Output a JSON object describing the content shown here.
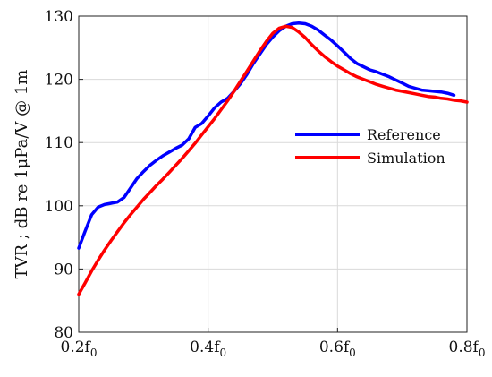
{
  "chart_data": {
    "type": "line",
    "title": "",
    "xlabel": "",
    "ylabel": "TVR ; dB re 1μPa/V @ 1m",
    "xlim": [
      0.2,
      0.8
    ],
    "ylim": [
      80,
      130
    ],
    "x_tick_labels": [
      {
        "base": "0.2f",
        "sub": "0"
      },
      {
        "base": "0.4f",
        "sub": "0"
      },
      {
        "base": "0.6f",
        "sub": "0"
      },
      {
        "base": "0.8f",
        "sub": "0"
      }
    ],
    "x_ticks": [
      0.2,
      0.4,
      0.6,
      0.8
    ],
    "y_ticks": [
      80,
      90,
      100,
      110,
      120,
      130
    ],
    "y_tick_labels": [
      "80",
      "90",
      "100",
      "110",
      "120",
      "130"
    ],
    "grid": true,
    "legend_position": "center-right",
    "series": [
      {
        "name": "Reference",
        "color": "#0000ff",
        "points": [
          [
            0.2,
            93.3
          ],
          [
            0.21,
            96.0
          ],
          [
            0.22,
            98.6
          ],
          [
            0.23,
            99.8
          ],
          [
            0.24,
            100.2
          ],
          [
            0.25,
            100.4
          ],
          [
            0.26,
            100.6
          ],
          [
            0.27,
            101.3
          ],
          [
            0.28,
            102.8
          ],
          [
            0.29,
            104.3
          ],
          [
            0.3,
            105.4
          ],
          [
            0.31,
            106.4
          ],
          [
            0.32,
            107.2
          ],
          [
            0.33,
            107.9
          ],
          [
            0.34,
            108.5
          ],
          [
            0.35,
            109.1
          ],
          [
            0.36,
            109.6
          ],
          [
            0.37,
            110.6
          ],
          [
            0.38,
            112.4
          ],
          [
            0.39,
            113.0
          ],
          [
            0.4,
            114.2
          ],
          [
            0.41,
            115.5
          ],
          [
            0.42,
            116.4
          ],
          [
            0.43,
            117.0
          ],
          [
            0.44,
            118.1
          ],
          [
            0.45,
            119.3
          ],
          [
            0.46,
            120.8
          ],
          [
            0.47,
            122.5
          ],
          [
            0.48,
            124.0
          ],
          [
            0.49,
            125.5
          ],
          [
            0.5,
            126.7
          ],
          [
            0.51,
            127.7
          ],
          [
            0.52,
            128.4
          ],
          [
            0.53,
            128.8
          ],
          [
            0.54,
            128.9
          ],
          [
            0.55,
            128.8
          ],
          [
            0.56,
            128.4
          ],
          [
            0.57,
            127.8
          ],
          [
            0.58,
            127.0
          ],
          [
            0.59,
            126.2
          ],
          [
            0.6,
            125.3
          ],
          [
            0.61,
            124.3
          ],
          [
            0.62,
            123.3
          ],
          [
            0.63,
            122.5
          ],
          [
            0.64,
            122.0
          ],
          [
            0.65,
            121.5
          ],
          [
            0.66,
            121.2
          ],
          [
            0.67,
            120.8
          ],
          [
            0.68,
            120.4
          ],
          [
            0.69,
            119.9
          ],
          [
            0.7,
            119.4
          ],
          [
            0.71,
            118.9
          ],
          [
            0.72,
            118.6
          ],
          [
            0.73,
            118.3
          ],
          [
            0.74,
            118.2
          ],
          [
            0.75,
            118.1
          ],
          [
            0.76,
            118.0
          ],
          [
            0.77,
            117.8
          ],
          [
            0.78,
            117.5
          ]
        ]
      },
      {
        "name": "Simulation",
        "color": "#ff0000",
        "points": [
          [
            0.2,
            86.0
          ],
          [
            0.21,
            87.8
          ],
          [
            0.22,
            89.7
          ],
          [
            0.23,
            91.4
          ],
          [
            0.24,
            93.0
          ],
          [
            0.25,
            94.5
          ],
          [
            0.26,
            95.9
          ],
          [
            0.27,
            97.3
          ],
          [
            0.28,
            98.6
          ],
          [
            0.29,
            99.8
          ],
          [
            0.3,
            101.0
          ],
          [
            0.31,
            102.1
          ],
          [
            0.32,
            103.2
          ],
          [
            0.33,
            104.2
          ],
          [
            0.34,
            105.3
          ],
          [
            0.35,
            106.4
          ],
          [
            0.36,
            107.5
          ],
          [
            0.37,
            108.7
          ],
          [
            0.38,
            109.9
          ],
          [
            0.39,
            111.2
          ],
          [
            0.4,
            112.5
          ],
          [
            0.41,
            113.8
          ],
          [
            0.42,
            115.2
          ],
          [
            0.43,
            116.6
          ],
          [
            0.44,
            118.1
          ],
          [
            0.45,
            119.7
          ],
          [
            0.46,
            121.3
          ],
          [
            0.47,
            122.9
          ],
          [
            0.48,
            124.5
          ],
          [
            0.49,
            126.0
          ],
          [
            0.5,
            127.3
          ],
          [
            0.51,
            128.1
          ],
          [
            0.52,
            128.4
          ],
          [
            0.53,
            128.2
          ],
          [
            0.54,
            127.5
          ],
          [
            0.55,
            126.6
          ],
          [
            0.56,
            125.5
          ],
          [
            0.57,
            124.5
          ],
          [
            0.58,
            123.6
          ],
          [
            0.59,
            122.8
          ],
          [
            0.6,
            122.1
          ],
          [
            0.61,
            121.5
          ],
          [
            0.62,
            120.9
          ],
          [
            0.63,
            120.4
          ],
          [
            0.64,
            120.0
          ],
          [
            0.65,
            119.6
          ],
          [
            0.66,
            119.2
          ],
          [
            0.67,
            118.9
          ],
          [
            0.68,
            118.6
          ],
          [
            0.69,
            118.3
          ],
          [
            0.7,
            118.1
          ],
          [
            0.71,
            117.9
          ],
          [
            0.72,
            117.7
          ],
          [
            0.73,
            117.5
          ],
          [
            0.74,
            117.3
          ],
          [
            0.75,
            117.2
          ],
          [
            0.76,
            117.0
          ],
          [
            0.77,
            116.9
          ],
          [
            0.78,
            116.7
          ],
          [
            0.79,
            116.6
          ],
          [
            0.8,
            116.4
          ]
        ]
      }
    ]
  }
}
